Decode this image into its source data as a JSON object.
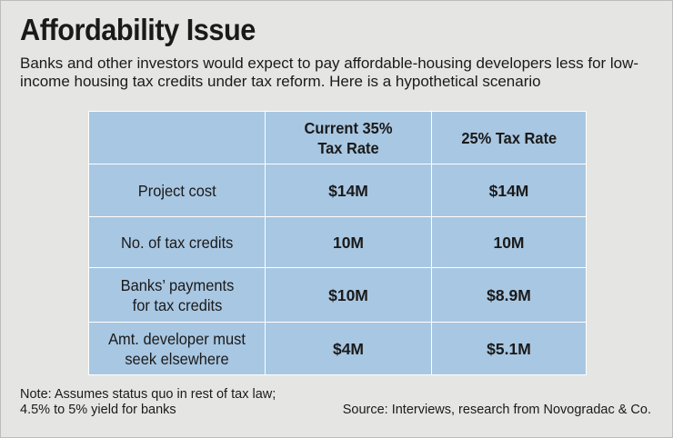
{
  "title": "Affordability Issue",
  "subtitle": "Banks and other investors would expect to pay affordable-housing developers less for low-income housing tax credits under tax reform. Here is a hypothetical scenario",
  "chart_data": {
    "type": "table",
    "columns": [
      "",
      "Current 35% Tax Rate",
      "25% Tax Rate"
    ],
    "rows": [
      {
        "label": "Project cost",
        "current": "$14M",
        "reform": "$14M"
      },
      {
        "label": "No. of tax credits",
        "current": "10M",
        "reform": "10M"
      },
      {
        "label": "Banks’ payments for tax credits",
        "current": "$10M",
        "reform": "$8.9M"
      },
      {
        "label": "Amt. developer must seek elsewhere",
        "current": "$4M",
        "reform": "$5.1M"
      }
    ]
  },
  "note": "Note: Assumes status quo in rest of tax law; 4.5% to 5% yield for banks",
  "source": "Source: Interviews, research from Novogradac & Co.",
  "colors": {
    "background": "#e5e5e3",
    "table_fill": "#a8c7e2",
    "grid": "#ffffff",
    "text": "#1a1a1a"
  }
}
